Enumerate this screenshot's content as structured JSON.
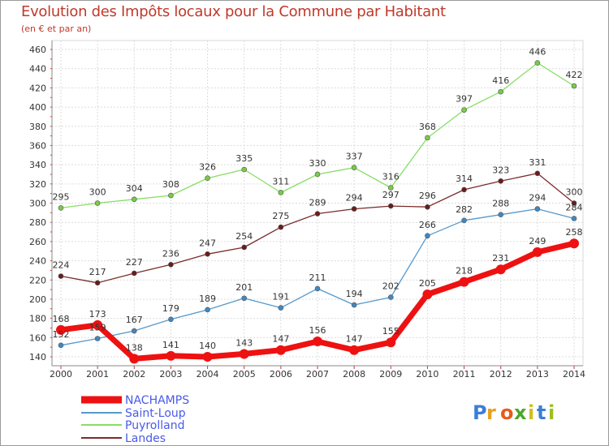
{
  "chart_data": {
    "type": "line",
    "title": "Evolution des Impôts locaux pour la Commune par Habitant",
    "subtitle": "(en € et par an)",
    "x": [
      "2000",
      "2001",
      "2002",
      "2003",
      "2004",
      "2005",
      "2006",
      "2007",
      "2008",
      "2009",
      "2010",
      "2011",
      "2012",
      "2013",
      "2014"
    ],
    "ylim": [
      140,
      460
    ],
    "yticks": [
      140,
      160,
      180,
      200,
      220,
      240,
      260,
      280,
      300,
      320,
      340,
      360,
      380,
      400,
      420,
      440,
      460
    ],
    "grid": true,
    "legend": "bottom-left",
    "series": [
      {
        "name": "Puyrolland",
        "color": "#88dd66",
        "marker": "#77cc44",
        "width": 1.3,
        "values": [
          295,
          300,
          304,
          308,
          326,
          335,
          311,
          330,
          337,
          316,
          368,
          397,
          416,
          446,
          422
        ]
      },
      {
        "name": "Landes",
        "color": "#7a2b2b",
        "marker": "#6a1b1b",
        "width": 1.3,
        "values": [
          224,
          217,
          227,
          236,
          247,
          254,
          275,
          289,
          294,
          297,
          296,
          314,
          323,
          331,
          300
        ]
      },
      {
        "name": "Saint-Loup",
        "color": "#5599cc",
        "marker": "#3f88c4",
        "width": 1.3,
        "values": [
          152,
          159,
          167,
          179,
          189,
          201,
          191,
          211,
          194,
          202,
          266,
          282,
          288,
          294,
          284
        ]
      },
      {
        "name": "NACHAMPS",
        "color": "#ee1111",
        "marker": "#ee1111",
        "width": 7,
        "values": [
          168,
          173,
          138,
          141,
          140,
          143,
          147,
          156,
          147,
          155,
          205,
          218,
          231,
          249,
          258
        ]
      }
    ],
    "legend_order": [
      "NACHAMPS",
      "Saint-Loup",
      "Puyrolland",
      "Landes"
    ]
  },
  "brand": {
    "text": "Proxiti",
    "letters": [
      "P",
      "r",
      "o",
      "x",
      "i",
      "t",
      "i"
    ]
  }
}
